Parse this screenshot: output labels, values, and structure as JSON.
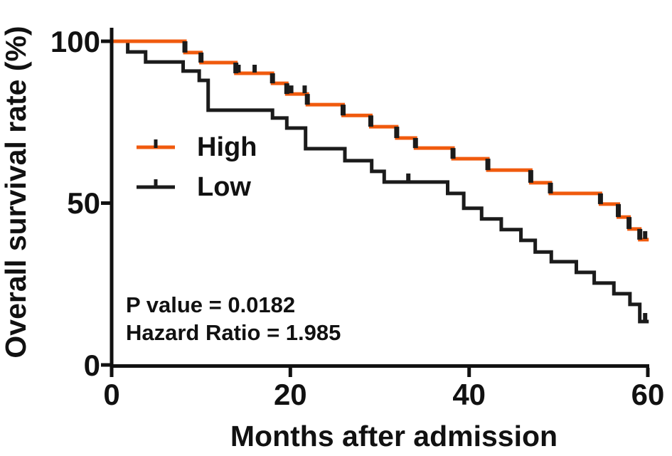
{
  "figure": {
    "background": "#ffffff"
  },
  "axes": {
    "x": {
      "label": "Months after admission",
      "ticks": [
        "0",
        "20",
        "40",
        "60"
      ]
    },
    "y": {
      "label": "Overall survival rate (%)",
      "ticks": [
        "100",
        "50",
        "0"
      ]
    }
  },
  "legend": {
    "items": [
      {
        "label": "High",
        "color": "#F05A0D"
      },
      {
        "label": "Low",
        "color": "#1b1b1b"
      }
    ]
  },
  "stats": {
    "p_value_line": "P value = 0.0182",
    "hazard_ratio_line": "Hazard Ratio = 1.985"
  },
  "chart_data": {
    "type": "line",
    "subtype": "kaplan-meier-step",
    "title": "",
    "xlabel": "Months after admission",
    "ylabel": "Overall survival rate (%)",
    "xlim": [
      0,
      60
    ],
    "ylim": [
      0,
      100
    ],
    "x_ticks": [
      0,
      20,
      40,
      60
    ],
    "y_ticks": [
      100,
      50,
      0
    ],
    "grid": false,
    "legend_position": "upper-left-inside",
    "annotations": [
      "P value = 0.0182",
      "Hazard Ratio = 1.985"
    ],
    "series": [
      {
        "name": "Low",
        "color": "#1b1b1b",
        "censor_color": "#1b1b1b",
        "end_time": 60.1,
        "censor_times": [
          33.2,
          59.7
        ],
        "steps": [
          [
            0,
            100
          ],
          [
            1.8,
            96.7
          ],
          [
            3.8,
            93.6
          ],
          [
            8.0,
            90.8
          ],
          [
            9.8,
            87.9
          ],
          [
            10.8,
            78.7
          ],
          [
            18.0,
            76.3
          ],
          [
            19.6,
            73.2
          ],
          [
            21.7,
            66.8
          ],
          [
            26.1,
            63.1
          ],
          [
            29.1,
            59.8
          ],
          [
            30.5,
            56.5
          ],
          [
            37.6,
            53.0
          ],
          [
            39.4,
            48.4
          ],
          [
            41.4,
            45.1
          ],
          [
            43.6,
            41.8
          ],
          [
            45.8,
            38.5
          ],
          [
            47.4,
            34.9
          ],
          [
            49.2,
            31.9
          ],
          [
            52.0,
            28.6
          ],
          [
            54.0,
            25.3
          ],
          [
            56.2,
            22.0
          ],
          [
            58.0,
            18.7
          ],
          [
            59.1,
            13.4
          ]
        ]
      },
      {
        "name": "High",
        "color": "#F05A0D",
        "riser_color": "#1b1b1b",
        "censor_color": "#1b1b1b",
        "end_time": 60.1,
        "censor_times": [
          14.2,
          16.0,
          20.1,
          21.6,
          59.7
        ],
        "steps": [
          [
            0,
            100
          ],
          [
            8.2,
            96.5
          ],
          [
            10.0,
            93.4
          ],
          [
            13.9,
            90.1
          ],
          [
            18.0,
            87.0
          ],
          [
            19.6,
            83.7
          ],
          [
            21.9,
            80.4
          ],
          [
            25.9,
            77.1
          ],
          [
            29.0,
            73.6
          ],
          [
            31.9,
            70.1
          ],
          [
            34.0,
            67.0
          ],
          [
            38.2,
            63.7
          ],
          [
            42.1,
            60.2
          ],
          [
            46.9,
            56.3
          ],
          [
            49.1,
            53.0
          ],
          [
            54.7,
            49.7
          ],
          [
            56.7,
            45.7
          ],
          [
            57.9,
            42.0
          ],
          [
            59.1,
            38.7
          ]
        ]
      }
    ]
  }
}
